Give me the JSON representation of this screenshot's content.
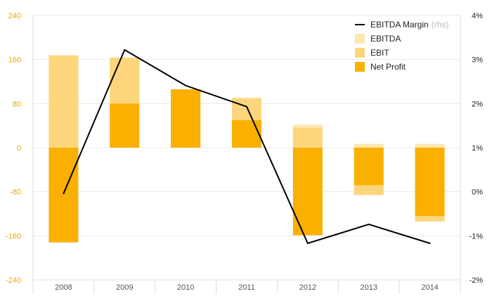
{
  "chart_data": {
    "type": "bar",
    "categories": [
      "2008",
      "2009",
      "2010",
      "2011",
      "2012",
      "2013",
      "2014"
    ],
    "series": [
      {
        "name": "EBITDA",
        "kind": "bar",
        "color": "#fde8b0",
        "values": [
          168,
          164,
          106,
          91,
          42,
          7,
          7
        ]
      },
      {
        "name": "EBIT",
        "kind": "bar",
        "color": "#fcd57c",
        "values": [
          167,
          163,
          105,
          89,
          36,
          -86,
          -134
        ]
      },
      {
        "name": "Net Profit",
        "kind": "bar",
        "color": "#f9b000",
        "values": [
          -172,
          80,
          106,
          50,
          -159,
          -68,
          -124
        ]
      },
      {
        "name": "EBITDA Margin",
        "name_suffix": "(rhs)",
        "kind": "line",
        "axis": "right",
        "color": "#000000",
        "values": [
          -0.04,
          3.22,
          2.41,
          1.93,
          -1.17,
          -0.74,
          -1.17
        ]
      }
    ],
    "y_left": {
      "ylim": [
        -240,
        240
      ],
      "ticks": [
        "240",
        "160",
        "80",
        "0",
        "-80",
        "-160",
        "-240"
      ],
      "tick_values": [
        240,
        160,
        80,
        0,
        -80,
        -160,
        -240
      ],
      "color": "#e8a800"
    },
    "y_right": {
      "ylim": [
        -2,
        4
      ],
      "ticks": [
        "4%",
        "3%",
        "2%",
        "1%",
        "0%",
        "-1%",
        "-2%"
      ],
      "tick_values": [
        4,
        3,
        2,
        1,
        0,
        -1,
        -2
      ]
    },
    "grid": true,
    "legend_position": "top-right",
    "title": "",
    "xlabel": "",
    "ylabel": ""
  }
}
